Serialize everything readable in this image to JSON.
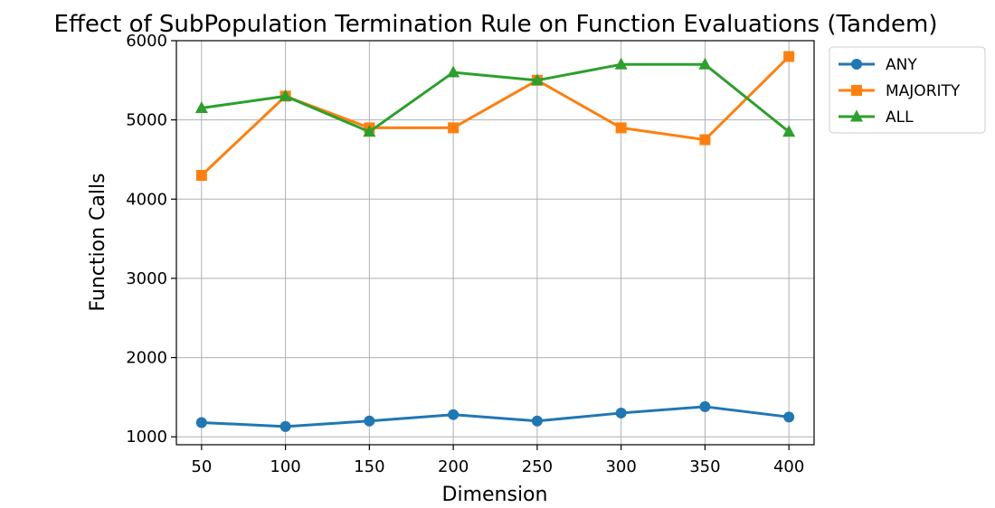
{
  "chart_data": {
    "type": "line",
    "title": "Effect of SubPopulation Termination Rule on Function Evaluations (Tandem)",
    "xlabel": "Dimension",
    "ylabel": "Function Calls",
    "x": [
      50,
      100,
      150,
      200,
      250,
      300,
      350,
      400
    ],
    "x_ticks": [
      "50",
      "100",
      "150",
      "200",
      "250",
      "300",
      "350",
      "400"
    ],
    "y_ticks": [
      1000,
      2000,
      3000,
      4000,
      5000,
      6000
    ],
    "xlim": [
      35,
      415
    ],
    "ylim": [
      900,
      6000
    ],
    "grid": true,
    "legend_position": "outside-top-right",
    "series": [
      {
        "name": "ANY",
        "color": "#1f77b4",
        "marker": "circle",
        "values": [
          1180,
          1130,
          1200,
          1280,
          1200,
          1300,
          1380,
          1250
        ]
      },
      {
        "name": "MAJORITY",
        "color": "#ff7f0e",
        "marker": "square",
        "values": [
          4300,
          5300,
          4900,
          4900,
          5500,
          4900,
          4750,
          5800
        ]
      },
      {
        "name": "ALL",
        "color": "#2ca02c",
        "marker": "triangle",
        "values": [
          5150,
          5300,
          4850,
          5600,
          5500,
          5700,
          5700,
          4850
        ]
      }
    ]
  }
}
